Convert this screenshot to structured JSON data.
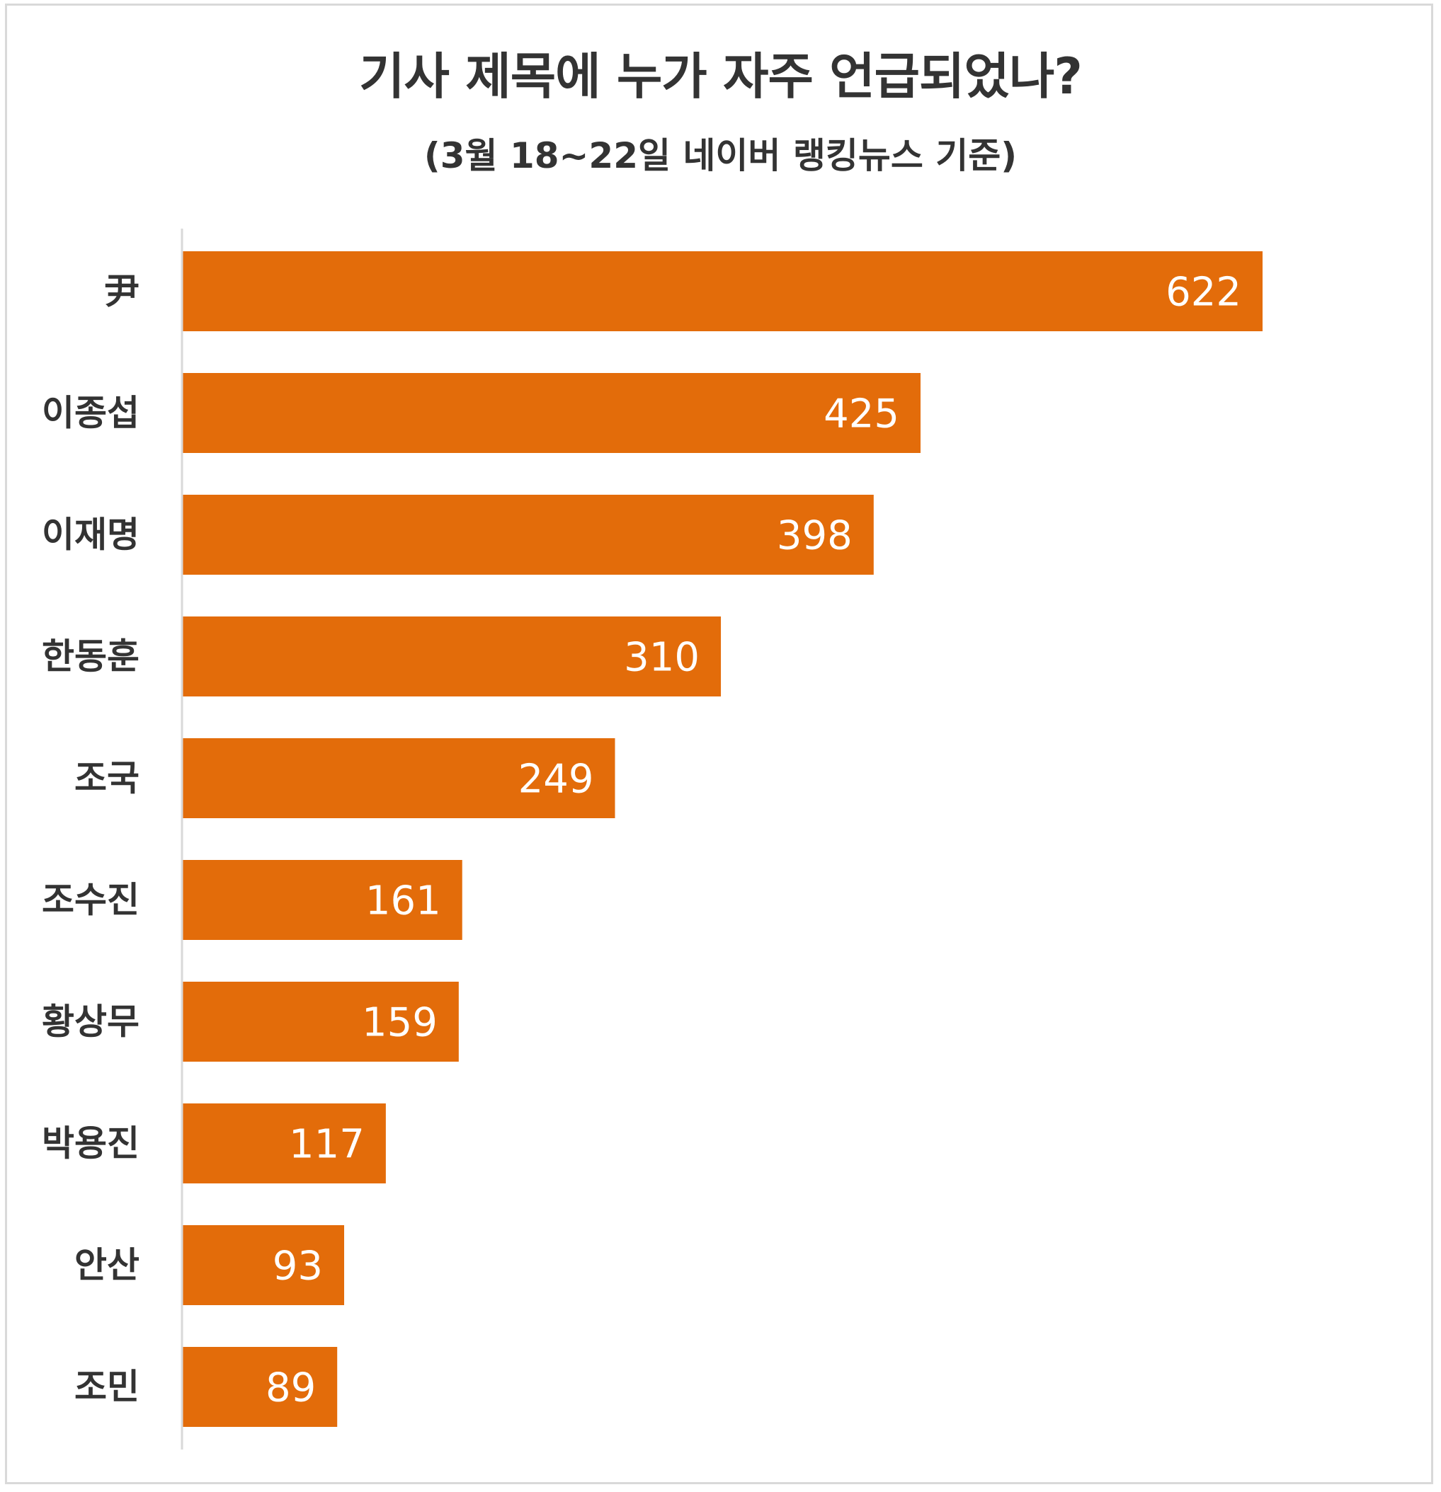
{
  "chart_data": {
    "type": "bar",
    "orientation": "horizontal",
    "title": "기사 제목에 누가 자주 언급되었나?",
    "subtitle": "(3월 18~22일 네이버 랭킹뉴스 기준)",
    "categories": [
      "尹",
      "이종섭",
      "이재명",
      "한동훈",
      "조국",
      "조수진",
      "황상무",
      "박용진",
      "안산",
      "조민"
    ],
    "values": [
      622,
      425,
      398,
      310,
      249,
      161,
      159,
      117,
      93,
      89
    ],
    "xlim": [
      0,
      700
    ],
    "grid": false,
    "legend": "none",
    "data_labels": "inside-end"
  },
  "colors": {
    "bar": "#e36c0a",
    "text": "#333333",
    "axis": "#d9d9d9",
    "value_text": "#ffffff"
  }
}
